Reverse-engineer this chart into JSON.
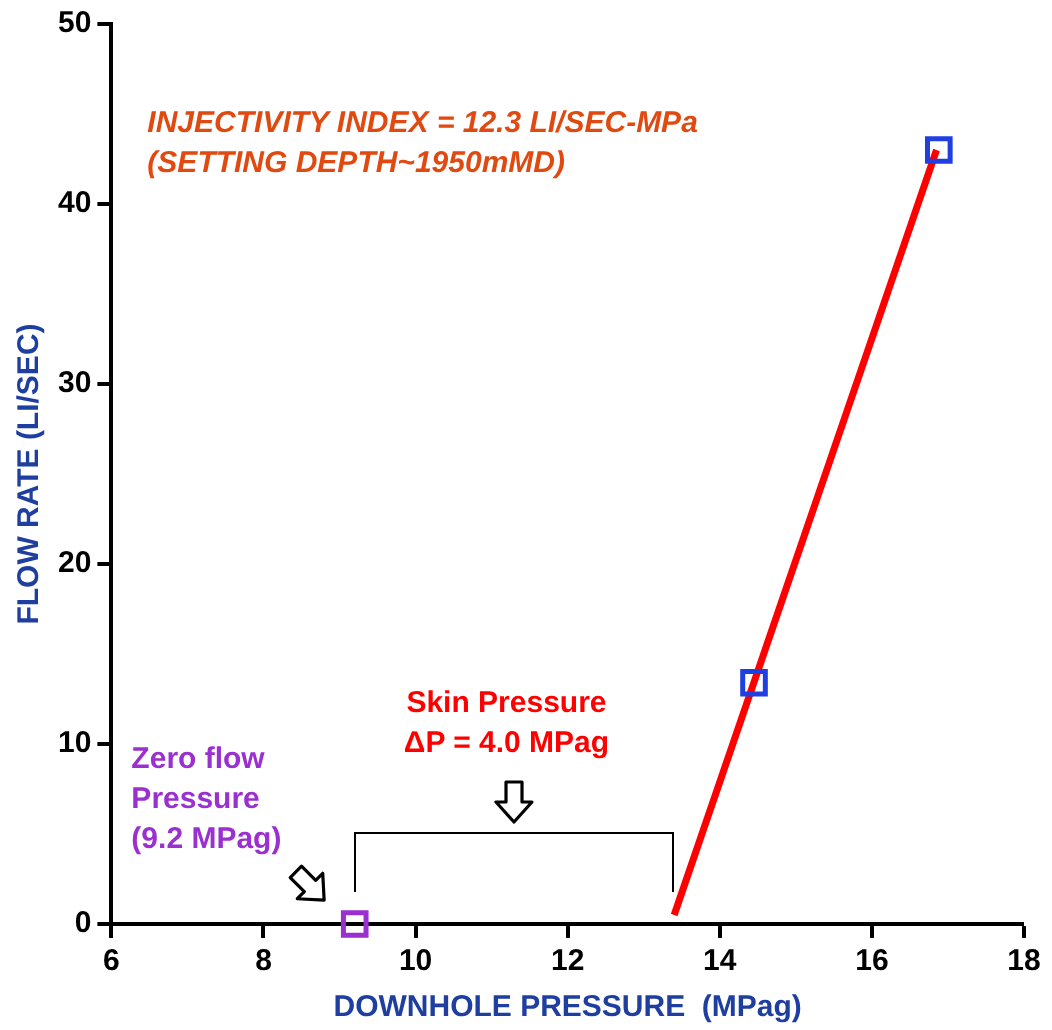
{
  "chart_data": {
    "type": "scatter",
    "xlabel": "DOWNHOLE PRESSURE  (MPag)",
    "ylabel": "FLOW RATE (LI/SEC)",
    "xlim": [
      6,
      18
    ],
    "xticks": [
      6,
      8,
      10,
      12,
      14,
      16,
      18
    ],
    "ylim": [
      0,
      50
    ],
    "yticks": [
      0,
      10,
      20,
      30,
      40,
      50
    ],
    "grid": false,
    "legend": false,
    "series": [
      {
        "type": "scatter",
        "color": "#1f3fe0",
        "x": [
          14.45,
          16.88
        ],
        "values": [
          13.4,
          43
        ],
        "marker": "square"
      },
      {
        "type": "scatter",
        "color": "#9b30d0",
        "x": [
          9.2
        ],
        "values": [
          0
        ],
        "marker": "square"
      },
      {
        "type": "line",
        "color": "#ff0000",
        "x": [
          13.4,
          16.85
        ],
        "values": [
          0.5,
          43
        ],
        "marker": "none"
      }
    ],
    "annotations": [
      "INJECTIVITY INDEX = 12.3 LI/SEC-MPa\n(SETTING DEPTH~1950mMD)",
      "Skin Pressure\nΔP = 4.0 MPag",
      "Zero flow\nPressure\n(9.2 MPag)"
    ]
  }
}
